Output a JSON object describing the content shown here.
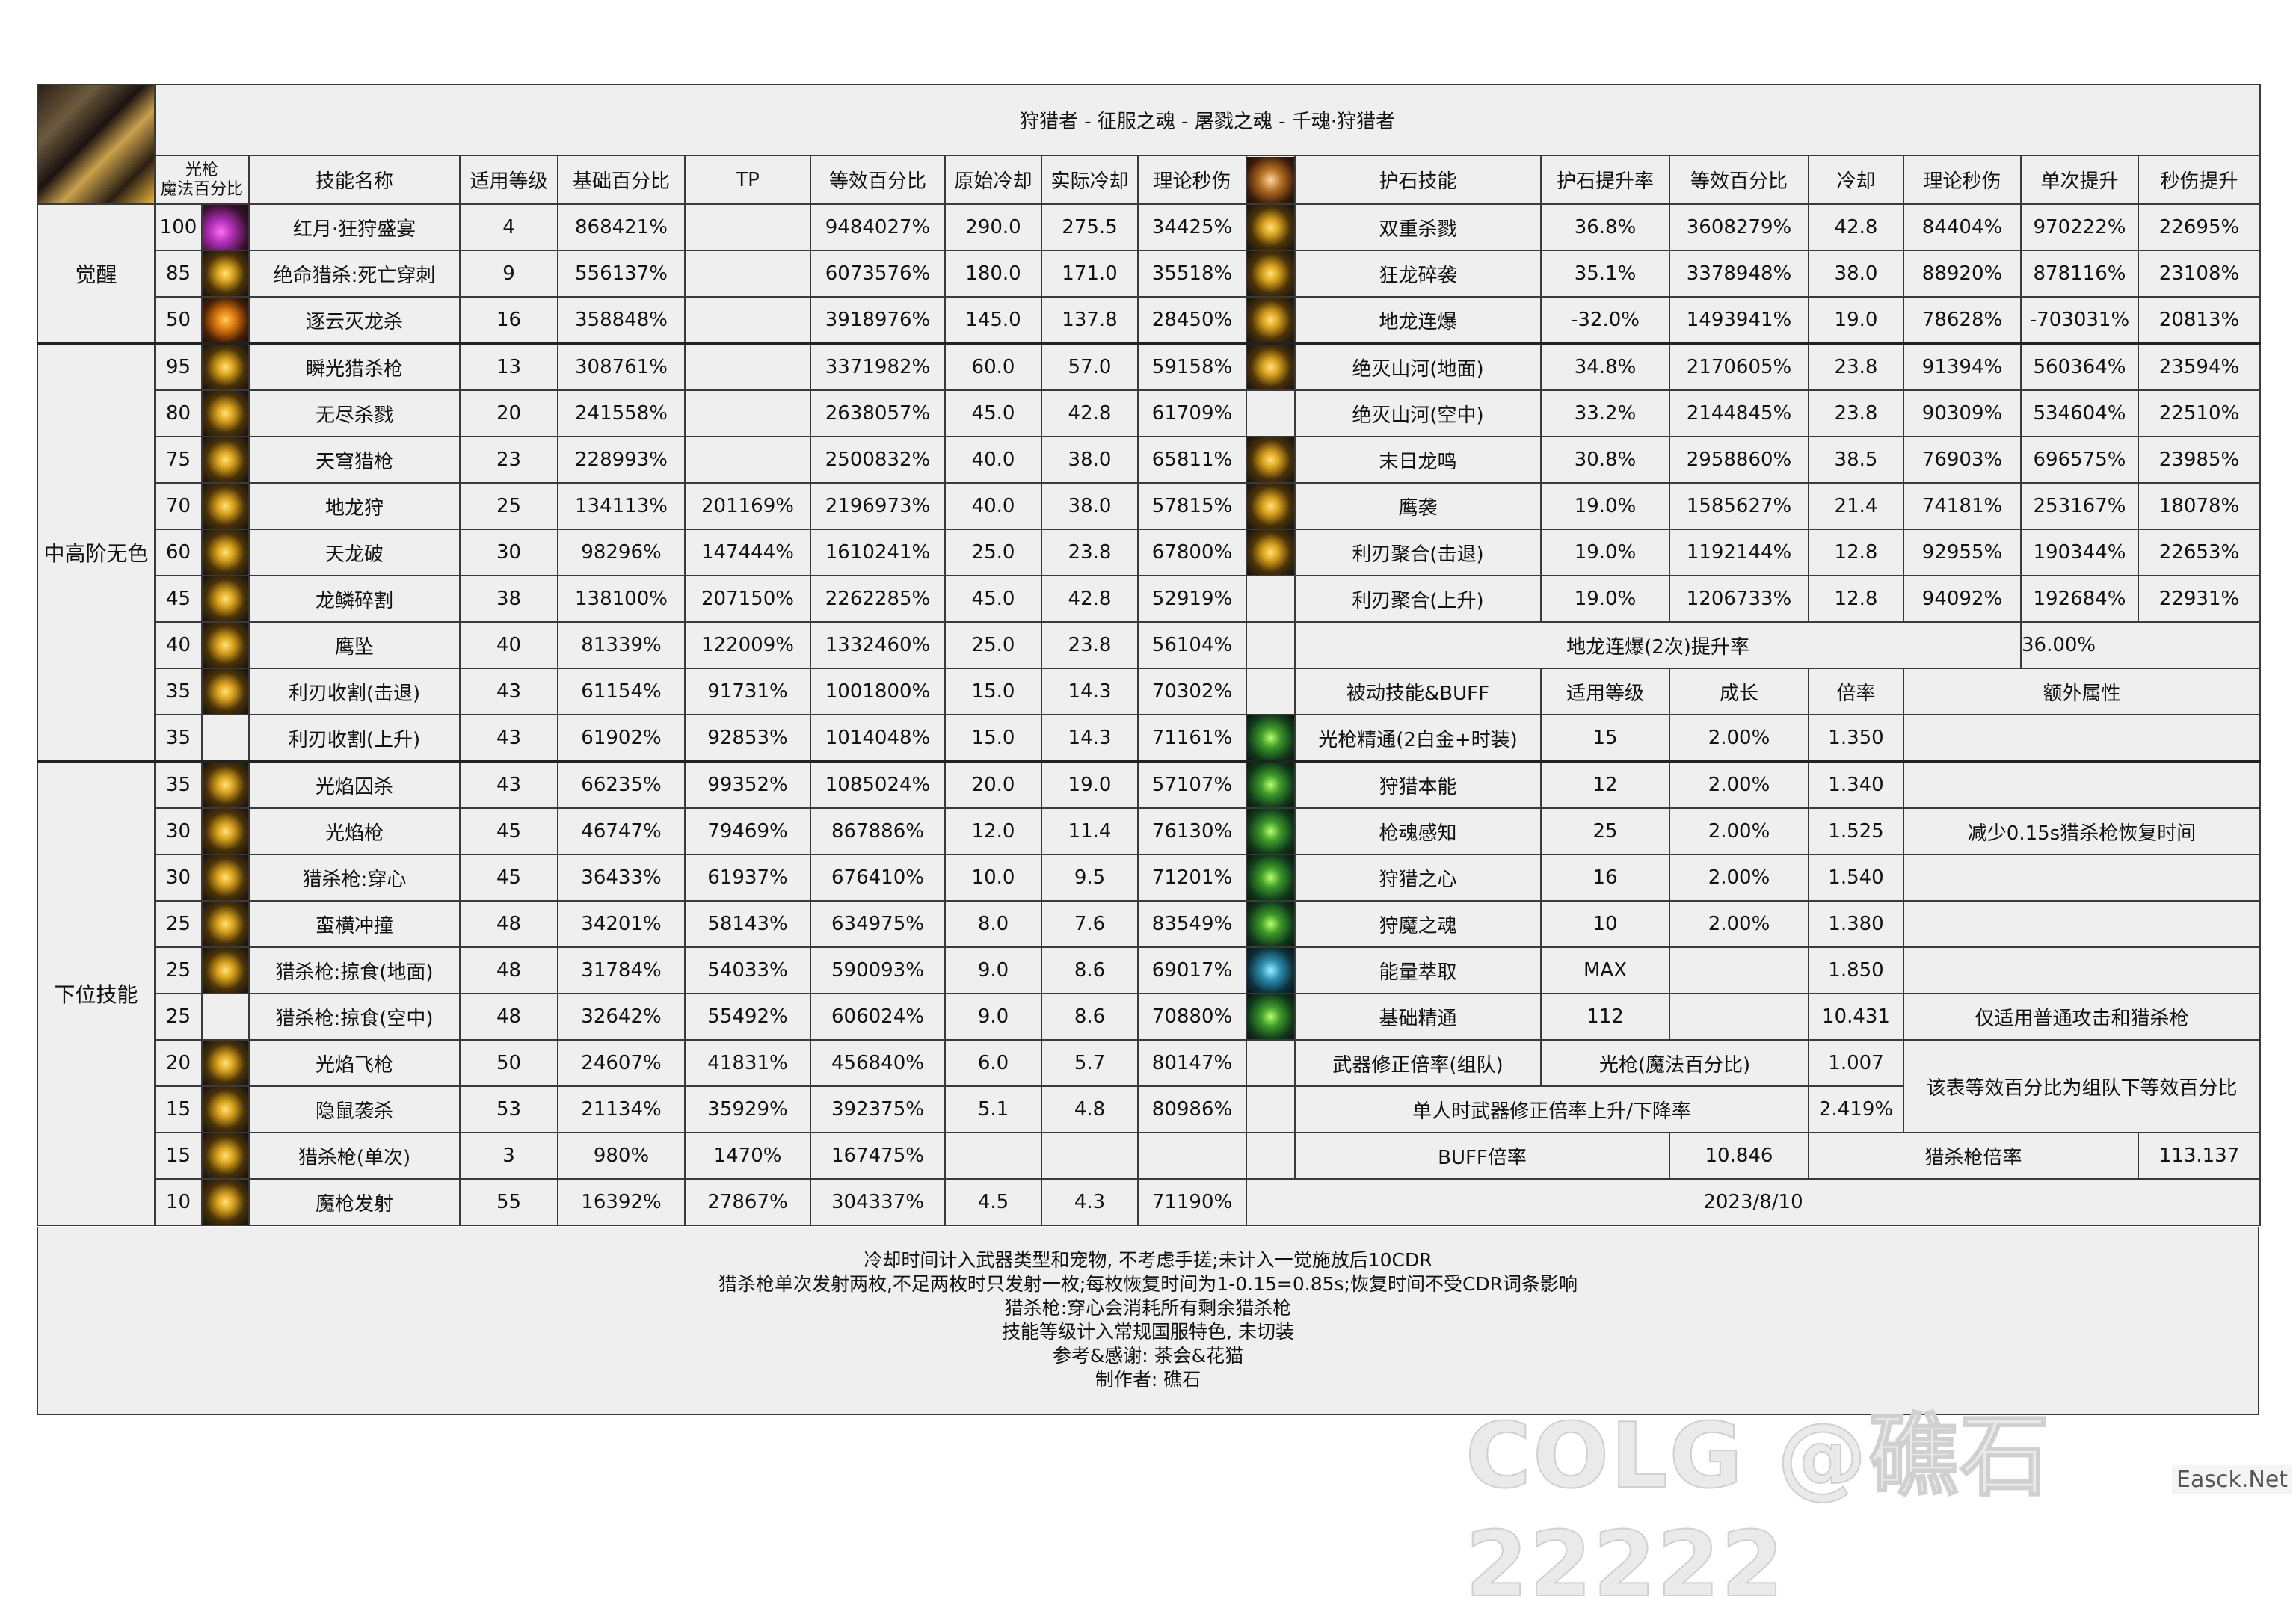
{
  "title": "狩猎者 - 征服之魂 - 屠戮之魂 - 千魂·狩猎者",
  "left_headers": {
    "magic_pct": "光枪\n魔法百分比",
    "name": "技能名称",
    "level": "适用等级",
    "base": "基础百分比",
    "tp": "TP",
    "equiv": "等效百分比",
    "orig_cd": "原始冷却",
    "actual_cd": "实际冷却",
    "dps": "理论秒伤"
  },
  "right_headers": {
    "stone_skill": "护石技能",
    "stone_rate": "护石提升率",
    "equiv": "等效百分比",
    "cd": "冷却",
    "dps": "理论秒伤",
    "single_up": "单次提升",
    "dps_up": "秒伤提升"
  },
  "categories": [
    {
      "label": "觉醒",
      "start": 0,
      "span": 3
    },
    {
      "label": "中高阶无色",
      "start": 3,
      "span": 9
    },
    {
      "label": "下位技能",
      "start": 12,
      "span": 10
    }
  ],
  "skills": [
    {
      "lv": "100",
      "icon": "purple",
      "name": "红月·狂狩盛宴",
      "level": "4",
      "base": "868421%",
      "tp": "",
      "equiv": "9484027%",
      "ocd": "290.0",
      "acd": "275.5",
      "dps": "34425%"
    },
    {
      "lv": "85",
      "icon": "gold",
      "name": "绝命猎杀:死亡穿刺",
      "level": "9",
      "base": "556137%",
      "tp": "",
      "equiv": "6073576%",
      "ocd": "180.0",
      "acd": "171.0",
      "dps": "35518%"
    },
    {
      "lv": "50",
      "icon": "orange",
      "name": "逐云灭龙杀",
      "level": "16",
      "base": "358848%",
      "tp": "",
      "equiv": "3918976%",
      "ocd": "145.0",
      "acd": "137.8",
      "dps": "28450%"
    },
    {
      "lv": "95",
      "icon": "gold",
      "name": "瞬光猎杀枪",
      "level": "13",
      "base": "308761%",
      "tp": "",
      "equiv": "3371982%",
      "ocd": "60.0",
      "acd": "57.0",
      "dps": "59158%"
    },
    {
      "lv": "80",
      "icon": "gold",
      "name": "无尽杀戮",
      "level": "20",
      "base": "241558%",
      "tp": "",
      "equiv": "2638057%",
      "ocd": "45.0",
      "acd": "42.8",
      "dps": "61709%"
    },
    {
      "lv": "75",
      "icon": "gold",
      "name": "天穹猎枪",
      "level": "23",
      "base": "228993%",
      "tp": "",
      "equiv": "2500832%",
      "ocd": "40.0",
      "acd": "38.0",
      "dps": "65811%"
    },
    {
      "lv": "70",
      "icon": "gold",
      "name": "地龙狩",
      "level": "25",
      "base": "134113%",
      "tp": "201169%",
      "equiv": "2196973%",
      "ocd": "40.0",
      "acd": "38.0",
      "dps": "57815%"
    },
    {
      "lv": "60",
      "icon": "gold",
      "name": "天龙破",
      "level": "30",
      "base": "98296%",
      "tp": "147444%",
      "equiv": "1610241%",
      "ocd": "25.0",
      "acd": "23.8",
      "dps": "67800%"
    },
    {
      "lv": "45",
      "icon": "gold",
      "name": "龙鳞碎割",
      "level": "38",
      "base": "138100%",
      "tp": "207150%",
      "equiv": "2262285%",
      "ocd": "45.0",
      "acd": "42.8",
      "dps": "52919%"
    },
    {
      "lv": "40",
      "icon": "gold",
      "name": "鹰坠",
      "level": "40",
      "base": "81339%",
      "tp": "122009%",
      "equiv": "1332460%",
      "ocd": "25.0",
      "acd": "23.8",
      "dps": "56104%"
    },
    {
      "lv": "35",
      "icon": "gold",
      "name": "利刃收割(击退)",
      "level": "43",
      "base": "61154%",
      "tp": "91731%",
      "equiv": "1001800%",
      "ocd": "15.0",
      "acd": "14.3",
      "dps": "70302%"
    },
    {
      "lv": "35",
      "icon": "none",
      "name": "利刃收割(上升)",
      "level": "43",
      "base": "61902%",
      "tp": "92853%",
      "equiv": "1014048%",
      "ocd": "15.0",
      "acd": "14.3",
      "dps": "71161%"
    },
    {
      "lv": "35",
      "icon": "gold",
      "name": "光焰囚杀",
      "level": "43",
      "base": "66235%",
      "tp": "99352%",
      "equiv": "1085024%",
      "ocd": "20.0",
      "acd": "19.0",
      "dps": "57107%"
    },
    {
      "lv": "30",
      "icon": "gold",
      "name": "光焰枪",
      "level": "45",
      "base": "46747%",
      "tp": "79469%",
      "equiv": "867886%",
      "ocd": "12.0",
      "acd": "11.4",
      "dps": "76130%"
    },
    {
      "lv": "30",
      "icon": "gold",
      "name": "猎杀枪:穿心",
      "level": "45",
      "base": "36433%",
      "tp": "61937%",
      "equiv": "676410%",
      "ocd": "10.0",
      "acd": "9.5",
      "dps": "71201%"
    },
    {
      "lv": "25",
      "icon": "gold",
      "name": "蛮横冲撞",
      "level": "48",
      "base": "34201%",
      "tp": "58143%",
      "equiv": "634975%",
      "ocd": "8.0",
      "acd": "7.6",
      "dps": "83549%"
    },
    {
      "lv": "25",
      "icon": "gold",
      "name": "猎杀枪:掠食(地面)",
      "level": "48",
      "base": "31784%",
      "tp": "54033%",
      "equiv": "590093%",
      "ocd": "9.0",
      "acd": "8.6",
      "dps": "69017%"
    },
    {
      "lv": "25",
      "icon": "none",
      "name": "猎杀枪:掠食(空中)",
      "level": "48",
      "base": "32642%",
      "tp": "55492%",
      "equiv": "606024%",
      "ocd": "9.0",
      "acd": "8.6",
      "dps": "70880%"
    },
    {
      "lv": "20",
      "icon": "gold",
      "name": "光焰飞枪",
      "level": "50",
      "base": "24607%",
      "tp": "41831%",
      "equiv": "456840%",
      "ocd": "6.0",
      "acd": "5.7",
      "dps": "80147%"
    },
    {
      "lv": "15",
      "icon": "gold",
      "name": "隐鼠袭杀",
      "level": "53",
      "base": "21134%",
      "tp": "35929%",
      "equiv": "392375%",
      "ocd": "5.1",
      "acd": "4.8",
      "dps": "80986%"
    },
    {
      "lv": "15",
      "icon": "gold",
      "name": "猎杀枪(单次)",
      "level": "3",
      "base": "980%",
      "tp": "1470%",
      "equiv": "167475%",
      "ocd": "",
      "acd": "",
      "dps": ""
    },
    {
      "lv": "10",
      "icon": "gold",
      "name": "魔枪发射",
      "level": "55",
      "base": "16392%",
      "tp": "27867%",
      "equiv": "304337%",
      "ocd": "4.5",
      "acd": "4.3",
      "dps": "71190%"
    }
  ],
  "stones": [
    {
      "icon": "gold",
      "name": "双重杀戮",
      "rate": "36.8%",
      "equiv": "3608279%",
      "cd": "42.8",
      "dps": "84404%",
      "single": "970222%",
      "up": "22695%"
    },
    {
      "icon": "gold",
      "name": "狂龙碎袭",
      "rate": "35.1%",
      "equiv": "3378948%",
      "cd": "38.0",
      "dps": "88920%",
      "single": "878116%",
      "up": "23108%"
    },
    {
      "icon": "gold",
      "name": "地龙连爆",
      "rate": "-32.0%",
      "equiv": "1493941%",
      "cd": "19.0",
      "dps": "78628%",
      "single": "-703031%",
      "up": "20813%"
    },
    {
      "icon": "gold",
      "name": "绝灭山河(地面)",
      "rate": "34.8%",
      "equiv": "2170605%",
      "cd": "23.8",
      "dps": "91394%",
      "single": "560364%",
      "up": "23594%"
    },
    {
      "icon": "none",
      "name": "绝灭山河(空中)",
      "rate": "33.2%",
      "equiv": "2144845%",
      "cd": "23.8",
      "dps": "90309%",
      "single": "534604%",
      "up": "22510%"
    },
    {
      "icon": "gold",
      "name": "末日龙鸣",
      "rate": "30.8%",
      "equiv": "2958860%",
      "cd": "38.5",
      "dps": "76903%",
      "single": "696575%",
      "up": "23985%"
    },
    {
      "icon": "gold",
      "name": "鹰袭",
      "rate": "19.0%",
      "equiv": "1585627%",
      "cd": "21.4",
      "dps": "74181%",
      "single": "253167%",
      "up": "18078%"
    },
    {
      "icon": "gold",
      "name": "利刃聚合(击退)",
      "rate": "19.0%",
      "equiv": "1192144%",
      "cd": "12.8",
      "dps": "92955%",
      "single": "190344%",
      "up": "22653%"
    },
    {
      "icon": "none",
      "name": "利刃聚合(上升)",
      "rate": "19.0%",
      "equiv": "1206733%",
      "cd": "12.8",
      "dps": "94092%",
      "single": "192684%",
      "up": "22931%"
    }
  ],
  "dilong_rate": {
    "label": "地龙连爆(2次)提升率",
    "value": "36.00%"
  },
  "passive_headers": {
    "name": "被动技能&BUFF",
    "level": "适用等级",
    "growth": "成长",
    "rate": "倍率",
    "extra": "额外属性"
  },
  "passives": [
    {
      "icon": "green",
      "name": "光枪精通(2白金+时装)",
      "level": "15",
      "growth": "2.00%",
      "rate": "1.350",
      "extra": ""
    },
    {
      "icon": "green",
      "name": "狩猎本能",
      "level": "12",
      "growth": "2.00%",
      "rate": "1.340",
      "extra": ""
    },
    {
      "icon": "green",
      "name": "枪魂感知",
      "level": "25",
      "growth": "2.00%",
      "rate": "1.525",
      "extra": "减少0.15s猎杀枪恢复时间"
    },
    {
      "icon": "green",
      "name": "狩猎之心",
      "level": "16",
      "growth": "2.00%",
      "rate": "1.540",
      "extra": ""
    },
    {
      "icon": "green",
      "name": "狩魔之魂",
      "level": "10",
      "growth": "2.00%",
      "rate": "1.380",
      "extra": ""
    },
    {
      "icon": "blue",
      "name": "能量萃取",
      "level": "MAX",
      "growth": "",
      "rate": "1.850",
      "extra": ""
    },
    {
      "icon": "green",
      "name": "基础精通",
      "level": "112",
      "growth": "",
      "rate": "10.431",
      "extra": "仅适用普通攻击和猎杀枪"
    }
  ],
  "weapon": {
    "label": "武器修正倍率(组队)",
    "type": "光枪(魔法百分比)",
    "rate": "1.007",
    "note": "该表等效百分比为组队下等效百分比",
    "solo_label": "单人时武器修正倍率上升/下降率",
    "solo_value": "2.419%"
  },
  "buff": {
    "label": "BUFF倍率",
    "value": "10.846",
    "gun_label": "猎杀枪倍率",
    "gun_value": "113.137"
  },
  "date": "2023/8/10",
  "notes": [
    "冷却时间计入武器类型和宠物, 不考虑手搓;未计入一觉施放后10CDR",
    "猎杀枪单次发射两枚,不足两枚时只发射一枚;每枚恢复时间为1-0.15=0.85s;恢复时间不受CDR词条影响",
    "猎杀枪:穿心会消耗所有剩余猎杀枪",
    "技能等级计入常规国服特色, 未切装",
    "参考&感谢: 茶会&花猫",
    "制作者: 礁石"
  ],
  "watermark": "COLG @礁石22222",
  "site_badge": "Easck.Net"
}
